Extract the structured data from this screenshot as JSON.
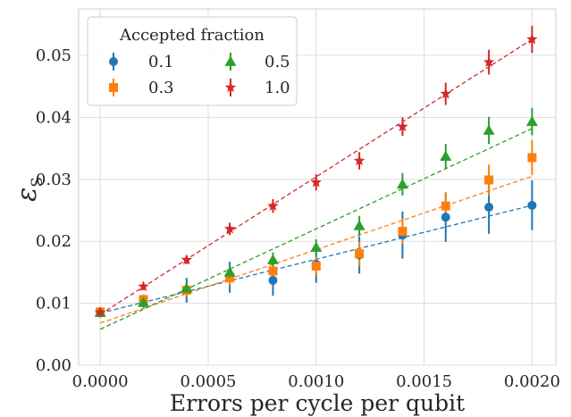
{
  "chart_data": {
    "type": "scatter",
    "xlabel": "Errors per cycle per qubit",
    "ylabel": {
      "main": "ε",
      "sub": "S"
    },
    "xlim": [
      -0.0001,
      0.00211
    ],
    "ylim": [
      0,
      0.0575
    ],
    "x_ticks": [
      "0.0000",
      "0.0005",
      "0.0010",
      "0.0015",
      "0.0020"
    ],
    "x_tick_values": [
      0,
      0.0005,
      0.001,
      0.0015,
      0.002
    ],
    "y_ticks": [
      "0.00",
      "0.01",
      "0.02",
      "0.03",
      "0.04",
      "0.05"
    ],
    "y_tick_values": [
      0,
      0.01,
      0.02,
      0.03,
      0.04,
      0.05
    ],
    "grid": true,
    "legend": {
      "title": "Accepted fraction",
      "placement": "top-left",
      "columns": 2
    },
    "x": [
      0,
      0.0002,
      0.0004,
      0.0006,
      0.0008,
      0.001,
      0.0012,
      0.0014,
      0.0016,
      0.0018,
      0.002
    ],
    "series": [
      {
        "name": "0.1",
        "color": "#1f77b4",
        "marker": "circle",
        "y": [
          0.0085,
          0.0103,
          0.0121,
          0.0142,
          0.0137,
          0.0163,
          0.0178,
          0.021,
          0.0239,
          0.0255,
          0.0258
        ],
        "err": [
          0.0008,
          0.001,
          0.002,
          0.0025,
          0.0025,
          0.003,
          0.003,
          0.0038,
          0.004,
          0.0043,
          0.004
        ],
        "fit": [
          0.0084,
          0.0258
        ]
      },
      {
        "name": "0.3",
        "color": "#ff7f0e",
        "marker": "square",
        "y": [
          0.0086,
          0.0106,
          0.0121,
          0.0141,
          0.0152,
          0.016,
          0.018,
          0.0216,
          0.0257,
          0.0299,
          0.0335
        ],
        "err": [
          0.0006,
          0.0008,
          0.001,
          0.0012,
          0.0013,
          0.0015,
          0.002,
          0.002,
          0.0022,
          0.0025,
          0.0028
        ],
        "fit": [
          0.0068,
          0.0305
        ]
      },
      {
        "name": "0.5",
        "color": "#2ca02c",
        "marker": "triangle",
        "y": [
          0.0085,
          0.0101,
          0.0124,
          0.015,
          0.017,
          0.019,
          0.0225,
          0.0292,
          0.0337,
          0.0379,
          0.0393
        ],
        "err": [
          0.0005,
          0.0007,
          0.001,
          0.0011,
          0.0012,
          0.0013,
          0.0016,
          0.0018,
          0.002,
          0.0022,
          0.0022
        ],
        "fit": [
          0.0058,
          0.0382
        ]
      },
      {
        "name": "1.0",
        "color": "#d62728",
        "marker": "star",
        "y": [
          0.0085,
          0.0127,
          0.017,
          0.022,
          0.0257,
          0.0295,
          0.033,
          0.0385,
          0.0438,
          0.0489,
          0.0526
        ],
        "err": [
          0.0004,
          0.0006,
          0.0007,
          0.001,
          0.0011,
          0.0013,
          0.0014,
          0.0015,
          0.0018,
          0.002,
          0.0022
        ],
        "fit": [
          0.0082,
          0.0526
        ]
      }
    ]
  }
}
